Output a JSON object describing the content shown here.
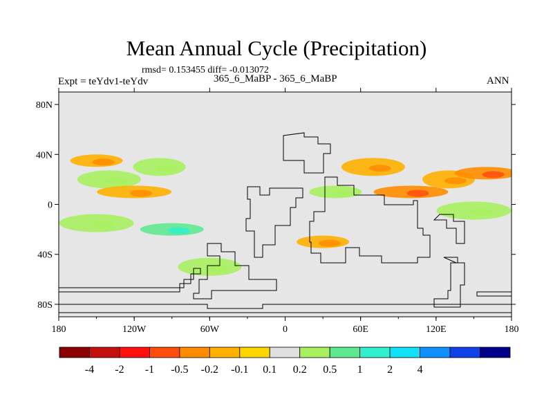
{
  "chart_data": {
    "type": "contour-map",
    "title": "Mean Annual Cycle (Precipitation)",
    "stats": "rmsd= 0.153455 diff= -0.013072",
    "left_string": "Expt = teYdv1-teYdv",
    "center_string": "365_6_MaBP - 365_6_MaBP",
    "right_string": "ANN",
    "x_ticks": [
      "180",
      "120W",
      "60W",
      "0",
      "60E",
      "120E",
      "180"
    ],
    "x_tick_values": [
      -180,
      -120,
      -60,
      0,
      60,
      120,
      180
    ],
    "y_ticks": [
      "80N",
      "40N",
      "0",
      "40S",
      "80S"
    ],
    "y_tick_values": [
      80,
      40,
      0,
      -40,
      -80
    ],
    "xlim": [
      -180,
      180
    ],
    "ylim": [
      -90,
      90
    ],
    "colorbar": {
      "labels": [
        "-4",
        "-2",
        "-1",
        "-0.5",
        "-0.2",
        "-0.1",
        "0.1",
        "0.2",
        "0.5",
        "1",
        "2",
        "4"
      ],
      "colors": [
        "#8b0000",
        "#c40f0f",
        "#ff1010",
        "#ff4d10",
        "#ff8c00",
        "#ffb000",
        "#ffd400",
        "#e0e0e0",
        "#a8f060",
        "#60e890",
        "#30f0d0",
        "#10e0f8",
        "#1090ff",
        "#1040e8",
        "#00008b"
      ]
    },
    "anomalies": [
      {
        "lon": -150,
        "lat": 35,
        "value": -0.2
      },
      {
        "lon": -140,
        "lat": 20,
        "value": 0.2
      },
      {
        "lon": -120,
        "lat": 10,
        "value": -0.2
      },
      {
        "lon": -100,
        "lat": 30,
        "value": 0.2
      },
      {
        "lon": -90,
        "lat": -20,
        "value": 0.5
      },
      {
        "lon": -150,
        "lat": -15,
        "value": 0.2
      },
      {
        "lon": 40,
        "lat": 10,
        "value": 0.2
      },
      {
        "lon": 70,
        "lat": 30,
        "value": -0.2
      },
      {
        "lon": 100,
        "lat": 10,
        "value": -0.5
      },
      {
        "lon": 130,
        "lat": 20,
        "value": -0.2
      },
      {
        "lon": 160,
        "lat": 25,
        "value": -0.5
      },
      {
        "lon": 150,
        "lat": -5,
        "value": 0.2
      },
      {
        "lon": 30,
        "lat": -30,
        "value": -0.2
      },
      {
        "lon": -60,
        "lat": -50,
        "value": 0.2
      }
    ]
  }
}
